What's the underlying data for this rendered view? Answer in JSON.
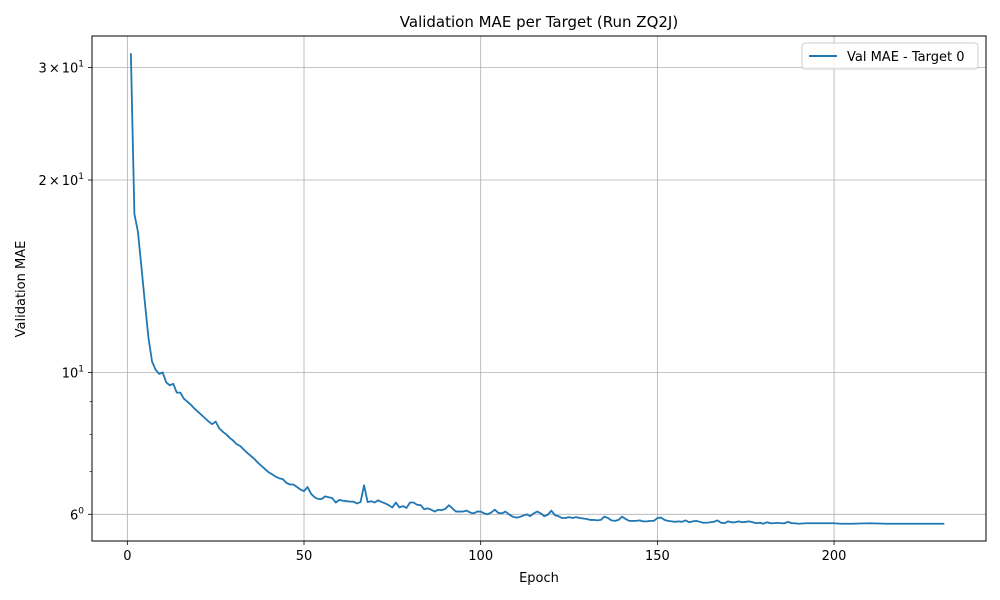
{
  "chart_data": {
    "type": "line",
    "title": "Validation MAE per Target (Run ZQ2J)",
    "xlabel": "Epoch",
    "ylabel": "Validation MAE",
    "yscale": "log",
    "xlim": [
      -10,
      243
    ],
    "ylim": [
      5.45,
      33.6
    ],
    "grid": true,
    "legend_loc": "top-right",
    "x_ticks": [
      0,
      50,
      100,
      150,
      200
    ],
    "x_tick_labels": [
      "0",
      "50",
      "100",
      "150",
      "200"
    ],
    "y_major_ticks": [
      6,
      10,
      20,
      30
    ],
    "y_major_labels": [
      {
        "base": "6",
        "sup": "0"
      },
      {
        "base": "10",
        "sup": "1"
      },
      {
        "base": "2",
        "mid": "×",
        "base2": "10",
        "sup": "1"
      },
      {
        "base": "3",
        "mid": "×",
        "base2": "10",
        "sup": "1"
      }
    ],
    "y_minor_ticks": [
      7,
      8,
      9
    ],
    "series": [
      {
        "name": "Val MAE - Target 0",
        "color": "#1f77b4",
        "points": [
          [
            1,
            31.5
          ],
          [
            2,
            17.7
          ],
          [
            3,
            16.6
          ],
          [
            4,
            14.6
          ],
          [
            5,
            12.8
          ],
          [
            6,
            11.3
          ],
          [
            7,
            10.4
          ],
          [
            8,
            10.1
          ],
          [
            9,
            9.95
          ],
          [
            10,
            10.0
          ],
          [
            11,
            9.65
          ],
          [
            12,
            9.55
          ],
          [
            13,
            9.6
          ],
          [
            14,
            9.3
          ],
          [
            15,
            9.3
          ],
          [
            16,
            9.1
          ],
          [
            17,
            9.0
          ],
          [
            18,
            8.9
          ],
          [
            19,
            8.78
          ],
          [
            20,
            8.68
          ],
          [
            21,
            8.58
          ],
          [
            22,
            8.48
          ],
          [
            23,
            8.38
          ],
          [
            24,
            8.3
          ],
          [
            25,
            8.38
          ],
          [
            26,
            8.18
          ],
          [
            27,
            8.08
          ],
          [
            28,
            8.0
          ],
          [
            29,
            7.9
          ],
          [
            30,
            7.82
          ],
          [
            31,
            7.72
          ],
          [
            32,
            7.67
          ],
          [
            33,
            7.57
          ],
          [
            34,
            7.48
          ],
          [
            35,
            7.4
          ],
          [
            36,
            7.32
          ],
          [
            37,
            7.22
          ],
          [
            38,
            7.14
          ],
          [
            39,
            7.06
          ],
          [
            40,
            6.98
          ],
          [
            41,
            6.93
          ],
          [
            42,
            6.87
          ],
          [
            43,
            6.83
          ],
          [
            44,
            6.81
          ],
          [
            45,
            6.72
          ],
          [
            46,
            6.68
          ],
          [
            47,
            6.68
          ],
          [
            48,
            6.62
          ],
          [
            49,
            6.56
          ],
          [
            50,
            6.52
          ],
          [
            51,
            6.62
          ],
          [
            52,
            6.46
          ],
          [
            53,
            6.38
          ],
          [
            54,
            6.34
          ],
          [
            55,
            6.34
          ],
          [
            56,
            6.4
          ],
          [
            57,
            6.38
          ],
          [
            58,
            6.36
          ],
          [
            59,
            6.26
          ],
          [
            60,
            6.32
          ],
          [
            61,
            6.3
          ],
          [
            62,
            6.29
          ],
          [
            63,
            6.28
          ],
          [
            64,
            6.28
          ],
          [
            65,
            6.24
          ],
          [
            66,
            6.27
          ],
          [
            67,
            6.66
          ],
          [
            68,
            6.27
          ],
          [
            69,
            6.29
          ],
          [
            70,
            6.26
          ],
          [
            71,
            6.31
          ],
          [
            72,
            6.27
          ],
          [
            73,
            6.24
          ],
          [
            74,
            6.2
          ],
          [
            75,
            6.15
          ],
          [
            76,
            6.26
          ],
          [
            77,
            6.15
          ],
          [
            78,
            6.18
          ],
          [
            79,
            6.14
          ],
          [
            80,
            6.26
          ],
          [
            81,
            6.26
          ],
          [
            82,
            6.21
          ],
          [
            83,
            6.2
          ],
          [
            84,
            6.11
          ],
          [
            85,
            6.13
          ],
          [
            86,
            6.1
          ],
          [
            87,
            6.06
          ],
          [
            88,
            6.1
          ],
          [
            89,
            6.09
          ],
          [
            90,
            6.12
          ],
          [
            91,
            6.2
          ],
          [
            92,
            6.13
          ],
          [
            93,
            6.06
          ],
          [
            94,
            6.06
          ],
          [
            95,
            6.06
          ],
          [
            96,
            6.08
          ],
          [
            97,
            6.04
          ],
          [
            98,
            6.02
          ],
          [
            99,
            6.06
          ],
          [
            100,
            6.06
          ],
          [
            101,
            6.02
          ],
          [
            102,
            6.0
          ],
          [
            103,
            6.04
          ],
          [
            104,
            6.1
          ],
          [
            105,
            6.03
          ],
          [
            106,
            6.02
          ],
          [
            107,
            6.06
          ],
          [
            108,
            6.0
          ],
          [
            109,
            5.95
          ],
          [
            110,
            5.93
          ],
          [
            111,
            5.94
          ],
          [
            112,
            5.97
          ],
          [
            113,
            6.0
          ],
          [
            114,
            5.96
          ],
          [
            115,
            6.02
          ],
          [
            116,
            6.06
          ],
          [
            117,
            6.02
          ],
          [
            118,
            5.96
          ],
          [
            119,
            5.99
          ],
          [
            120,
            6.08
          ],
          [
            121,
            5.98
          ],
          [
            122,
            5.96
          ],
          [
            123,
            5.92
          ],
          [
            124,
            5.92
          ],
          [
            125,
            5.94
          ],
          [
            126,
            5.92
          ],
          [
            127,
            5.94
          ],
          [
            128,
            5.92
          ],
          [
            129,
            5.91
          ],
          [
            130,
            5.9
          ],
          [
            131,
            5.88
          ],
          [
            132,
            5.88
          ],
          [
            133,
            5.87
          ],
          [
            134,
            5.88
          ],
          [
            135,
            5.95
          ],
          [
            136,
            5.92
          ],
          [
            137,
            5.87
          ],
          [
            138,
            5.86
          ],
          [
            139,
            5.88
          ],
          [
            140,
            5.95
          ],
          [
            141,
            5.9
          ],
          [
            142,
            5.86
          ],
          [
            143,
            5.86
          ],
          [
            144,
            5.86
          ],
          [
            145,
            5.87
          ],
          [
            146,
            5.85
          ],
          [
            147,
            5.85
          ],
          [
            148,
            5.86
          ],
          [
            149,
            5.86
          ],
          [
            150,
            5.92
          ],
          [
            151,
            5.93
          ],
          [
            152,
            5.88
          ],
          [
            153,
            5.86
          ],
          [
            154,
            5.85
          ],
          [
            155,
            5.84
          ],
          [
            156,
            5.85
          ],
          [
            157,
            5.84
          ],
          [
            158,
            5.87
          ],
          [
            159,
            5.83
          ],
          [
            160,
            5.85
          ],
          [
            161,
            5.86
          ],
          [
            162,
            5.84
          ],
          [
            163,
            5.82
          ],
          [
            164,
            5.82
          ],
          [
            165,
            5.83
          ],
          [
            166,
            5.84
          ],
          [
            167,
            5.87
          ],
          [
            168,
            5.82
          ],
          [
            169,
            5.81
          ],
          [
            170,
            5.85
          ],
          [
            171,
            5.83
          ],
          [
            172,
            5.83
          ],
          [
            173,
            5.85
          ],
          [
            174,
            5.83
          ],
          [
            175,
            5.84
          ],
          [
            176,
            5.85
          ],
          [
            177,
            5.83
          ],
          [
            178,
            5.81
          ],
          [
            179,
            5.82
          ],
          [
            180,
            5.8
          ],
          [
            181,
            5.83
          ],
          [
            182,
            5.81
          ],
          [
            183,
            5.81
          ],
          [
            184,
            5.82
          ],
          [
            185,
            5.81
          ],
          [
            186,
            5.81
          ],
          [
            187,
            5.84
          ],
          [
            188,
            5.81
          ],
          [
            189,
            5.81
          ],
          [
            190,
            5.8
          ],
          [
            192,
            5.81
          ],
          [
            195,
            5.81
          ],
          [
            200,
            5.81
          ],
          [
            202,
            5.8
          ],
          [
            205,
            5.8
          ],
          [
            210,
            5.81
          ],
          [
            215,
            5.8
          ],
          [
            220,
            5.8
          ],
          [
            225,
            5.8
          ],
          [
            231,
            5.8
          ]
        ]
      }
    ]
  }
}
